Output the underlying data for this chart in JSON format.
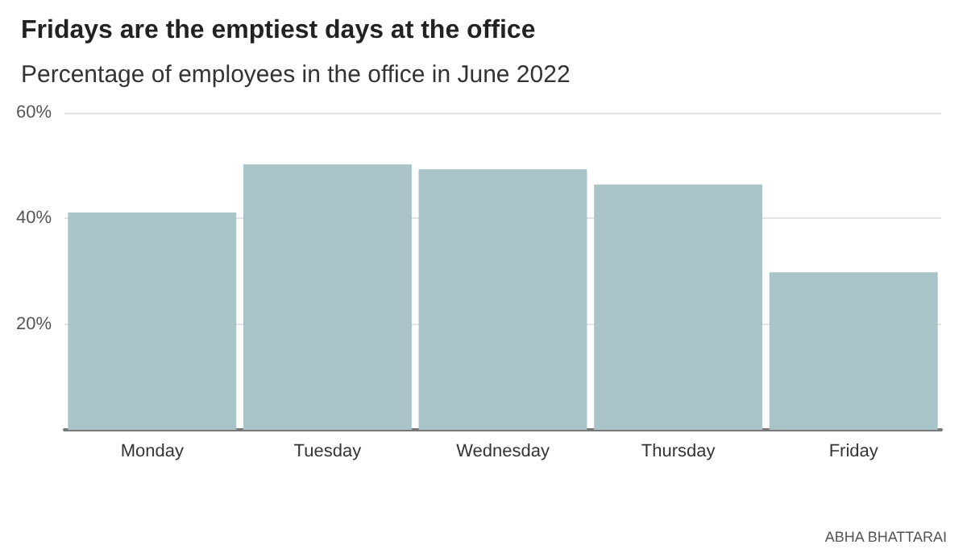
{
  "chart_data": {
    "type": "bar",
    "title": "Fridays are the emptiest days at the office",
    "subtitle": "Percentage of employees in the office in June 2022",
    "categories": [
      "Monday",
      "Tuesday",
      "Wednesday",
      "Thursday",
      "Friday"
    ],
    "values": [
      41.1,
      50.2,
      49.3,
      46.4,
      29.8
    ],
    "color": "#a9c4c8",
    "ylim": [
      0,
      60
    ],
    "yticks": [
      {
        "value": 0,
        "label": null
      },
      {
        "value": 20,
        "label": "20%"
      },
      {
        "value": 40,
        "label": "40%"
      },
      {
        "value": 60,
        "label": "60%"
      }
    ],
    "grid": "y",
    "annotations": [
      "ABHA BHATTARAI"
    ]
  }
}
